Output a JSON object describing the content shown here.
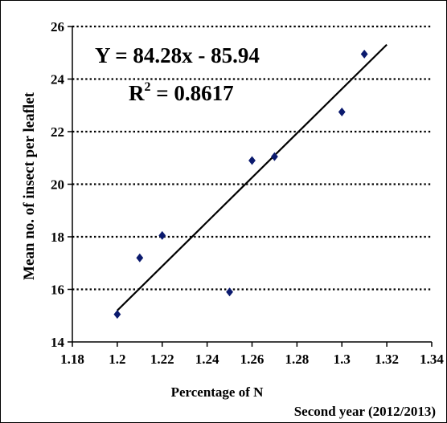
{
  "chart_data": {
    "type": "scatter",
    "title": "",
    "xlabel": "Percentage of N",
    "ylabel": "Mean no. of insect per leaflet",
    "caption": "Second year (2012/2013)",
    "xlim": [
      1.18,
      1.34
    ],
    "ylim": [
      14,
      26
    ],
    "xticks": [
      "1.18",
      "1.2",
      "1.22",
      "1.24",
      "1.26",
      "1.28",
      "1.3",
      "1.32",
      "1.34"
    ],
    "yticks": [
      "14",
      "16",
      "18",
      "20",
      "22",
      "24",
      "26"
    ],
    "grid": "horizontal dotted",
    "marker_color": "#0b1a6e",
    "points": [
      {
        "x": 1.2,
        "y": 15.05
      },
      {
        "x": 1.21,
        "y": 17.2
      },
      {
        "x": 1.22,
        "y": 18.05
      },
      {
        "x": 1.25,
        "y": 15.9
      },
      {
        "x": 1.26,
        "y": 20.9
      },
      {
        "x": 1.27,
        "y": 21.05
      },
      {
        "x": 1.3,
        "y": 22.75
      },
      {
        "x": 1.31,
        "y": 24.95
      }
    ],
    "trendline": {
      "equation": "Y = 84.28x - 85.94",
      "r2_label": "R",
      "r2_sup": "2",
      "r2_value": " = 0.8617",
      "slope": 84.28,
      "intercept": -85.94,
      "x_range": [
        1.2,
        1.32
      ]
    }
  }
}
